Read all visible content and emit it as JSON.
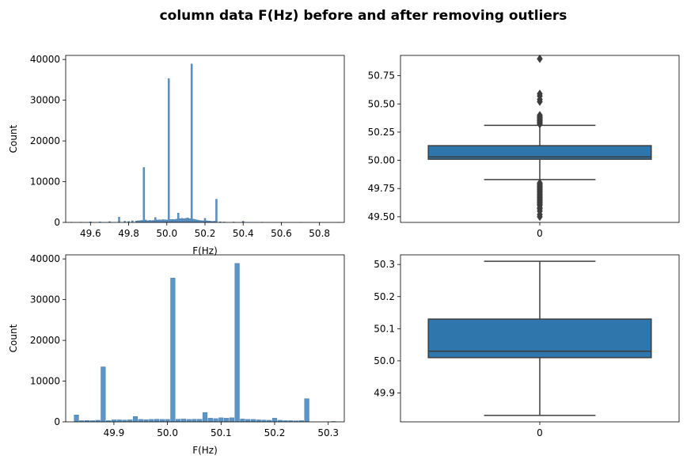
{
  "figure": {
    "title": "column data F(Hz) before and after removing outliers"
  },
  "colors": {
    "hist_fill": "#5b94c5",
    "hist_edge": "#3a6f9f",
    "box_fill": "#2e76ab",
    "box_line": "#3d3d3d"
  },
  "chart_data": [
    {
      "type": "histogram",
      "xlabel": "F(Hz)",
      "ylabel": "Count",
      "xlim": [
        49.47,
        50.93
      ],
      "ylim": [
        0,
        41000
      ],
      "xticks": [
        49.6,
        49.8,
        50.0,
        50.2,
        50.4,
        50.6,
        50.8
      ],
      "xtick_labels": [
        "49.6",
        "49.8",
        "50.0",
        "50.2",
        "50.4",
        "50.6",
        "50.8"
      ],
      "yticks": [
        0,
        10000,
        20000,
        30000,
        40000
      ],
      "ytick_labels": [
        "0",
        "10000",
        "20000",
        "30000",
        "40000"
      ],
      "x": [
        49.5,
        49.55,
        49.6,
        49.65,
        49.7,
        49.75,
        49.78,
        49.8,
        49.82,
        49.84,
        49.85,
        49.86,
        49.87,
        49.88,
        49.89,
        49.9,
        49.91,
        49.92,
        49.93,
        49.94,
        49.95,
        49.96,
        49.97,
        49.98,
        49.99,
        50.0,
        50.01,
        50.02,
        50.03,
        50.04,
        50.05,
        50.06,
        50.07,
        50.08,
        50.09,
        50.1,
        50.11,
        50.12,
        50.13,
        50.14,
        50.15,
        50.16,
        50.17,
        50.18,
        50.19,
        50.2,
        50.21,
        50.22,
        50.23,
        50.24,
        50.25,
        50.26,
        50.28,
        50.3,
        50.35,
        50.4,
        50.5,
        50.6,
        50.7,
        50.8,
        50.9
      ],
      "values": [
        50,
        60,
        150,
        120,
        200,
        1300,
        300,
        250,
        400,
        350,
        400,
        450,
        500,
        13500,
        600,
        400,
        500,
        450,
        500,
        1200,
        600,
        650,
        600,
        700,
        650,
        600,
        35300,
        700,
        750,
        700,
        800,
        2300,
        900,
        1000,
        900,
        1000,
        1100,
        900,
        38900,
        800,
        700,
        600,
        500,
        450,
        400,
        1000,
        400,
        350,
        300,
        250,
        300,
        5700,
        150,
        100,
        100,
        300,
        60,
        40,
        30,
        20,
        30
      ]
    },
    {
      "type": "box",
      "xlim": [
        -0.5,
        0.5
      ],
      "ylim": [
        49.45,
        50.93
      ],
      "xticks": [
        0
      ],
      "xtick_labels": [
        "0"
      ],
      "yticks": [
        49.5,
        49.75,
        50.0,
        50.25,
        50.5,
        50.75
      ],
      "ytick_labels": [
        "49.50",
        "49.75",
        "50.00",
        "50.25",
        "50.50",
        "50.75"
      ],
      "q1": 50.01,
      "median": 50.03,
      "q3": 50.13,
      "whisker_low": 49.83,
      "whisker_high": 50.31,
      "outliers": [
        50.32,
        50.33,
        50.34,
        50.35,
        50.36,
        50.37,
        50.38,
        50.39,
        50.4,
        50.52,
        50.54,
        50.57,
        50.59,
        50.9,
        49.8,
        49.79,
        49.78,
        49.77,
        49.76,
        49.75,
        49.74,
        49.73,
        49.72,
        49.71,
        49.7,
        49.69,
        49.68,
        49.67,
        49.66,
        49.65,
        49.64,
        49.63,
        49.62,
        49.61,
        49.6,
        49.58,
        49.57,
        49.55,
        49.52,
        49.5
      ]
    },
    {
      "type": "histogram",
      "xlabel": "F(Hz)",
      "ylabel": "Count",
      "xlim": [
        49.81,
        50.33
      ],
      "ylim": [
        0,
        41000
      ],
      "xticks": [
        49.9,
        50.0,
        50.1,
        50.2,
        50.3
      ],
      "xtick_labels": [
        "49.9",
        "50.0",
        "50.1",
        "50.2",
        "50.3"
      ],
      "yticks": [
        0,
        10000,
        20000,
        30000,
        40000
      ],
      "ytick_labels": [
        "0",
        "10000",
        "20000",
        "30000",
        "40000"
      ],
      "x": [
        49.83,
        49.84,
        49.85,
        49.86,
        49.87,
        49.88,
        49.89,
        49.9,
        49.91,
        49.92,
        49.93,
        49.94,
        49.95,
        49.96,
        49.97,
        49.98,
        49.99,
        50.0,
        50.01,
        50.02,
        50.03,
        50.04,
        50.05,
        50.06,
        50.07,
        50.08,
        50.09,
        50.1,
        50.11,
        50.12,
        50.13,
        50.14,
        50.15,
        50.16,
        50.17,
        50.18,
        50.19,
        50.2,
        50.21,
        50.22,
        50.23,
        50.24,
        50.25,
        50.26,
        50.27,
        50.28,
        50.29,
        50.3,
        50.31
      ],
      "values": [
        1700,
        300,
        350,
        300,
        400,
        13500,
        300,
        500,
        500,
        450,
        500,
        1300,
        600,
        550,
        600,
        650,
        600,
        600,
        35300,
        650,
        700,
        600,
        650,
        650,
        2300,
        900,
        800,
        1000,
        900,
        1000,
        38900,
        700,
        600,
        600,
        500,
        450,
        400,
        900,
        400,
        300,
        300,
        250,
        300,
        5700,
        0,
        0,
        0,
        0,
        100
      ]
    },
    {
      "type": "box",
      "xlim": [
        -0.5,
        0.5
      ],
      "ylim": [
        49.81,
        50.33
      ],
      "xticks": [
        0
      ],
      "xtick_labels": [
        "0"
      ],
      "yticks": [
        49.9,
        50.0,
        50.1,
        50.2,
        50.3
      ],
      "ytick_labels": [
        "49.9",
        "50.0",
        "50.1",
        "50.2",
        "50.3"
      ],
      "q1": 50.01,
      "median": 50.03,
      "q3": 50.13,
      "whisker_low": 49.83,
      "whisker_high": 50.31,
      "outliers": []
    }
  ]
}
